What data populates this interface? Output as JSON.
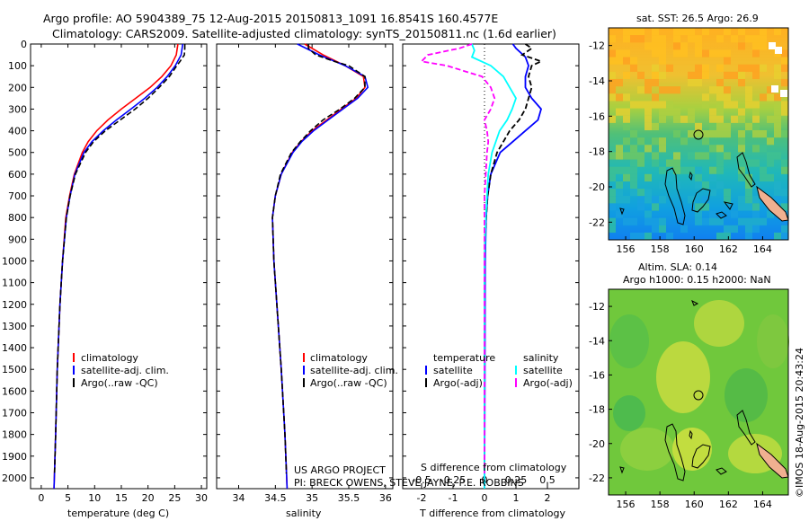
{
  "header": {
    "line1": "Argo profile: AO 5904389_75 12-Aug-2015 20150813_1091 16.8541S 160.4577E",
    "line2": "Climatology: CARS2009. Satellite-adjusted climatology: synTS_20150811.nc (1.6d earlier)"
  },
  "credits": {
    "line1": "US ARGO PROJECT",
    "line2": "PI: BRECK OWENS, STEVE JAYNE, P.E. ROBBINS"
  },
  "timestamp": "©IMOS 18-Aug-2015 20:43:24",
  "map_sst": {
    "title": "sat. SST: 26.5 Argo: 26.9"
  },
  "map_sla": {
    "title1": "Altim. SLA: 0.14",
    "title2": "Argo h1000: 0.15 h2000: NaN"
  },
  "legend_left": {
    "items": [
      "climatology",
      "satellite-adj. clim.",
      "Argo(..raw -QC)"
    ]
  },
  "legend_mid": {
    "items": [
      "climatology",
      "satellite-adj. clim.",
      "Argo(..raw -QC)"
    ]
  },
  "legend_right": {
    "col1_title": "temperature",
    "col1_items": [
      "satellite",
      "Argo(-adj)"
    ],
    "col2_title": "salinity",
    "col2_items": [
      "satellite",
      "Argo(-adj)"
    ]
  },
  "colors": {
    "climatology": "#ff0000",
    "satellite": "#0000ff",
    "argo": "#000000",
    "sal_sat": "#00ffff",
    "sal_argo": "#ff00ff",
    "land": "#f0b090"
  },
  "chart_data": [
    {
      "type": "line",
      "xlabel": "temperature (deg C)",
      "ylabel": "",
      "xlim": [
        -2,
        31
      ],
      "ylim": [
        2050,
        0
      ],
      "xticks": [
        "0",
        "5",
        "10",
        "15",
        "20",
        "25",
        "30"
      ],
      "yticks": [
        "0",
        "100",
        "200",
        "300",
        "400",
        "500",
        "600",
        "700",
        "800",
        "900",
        "1000",
        "1100",
        "1200",
        "1300",
        "1400",
        "1500",
        "1600",
        "1700",
        "1800",
        "1900",
        "2000"
      ],
      "series": [
        {
          "name": "climatology",
          "depth": [
            0,
            50,
            100,
            150,
            200,
            250,
            300,
            350,
            400,
            450,
            500,
            600,
            700,
            800,
            1000,
            1200,
            1500,
            1800,
            2050
          ],
          "values": [
            25.6,
            25.3,
            24.3,
            22.6,
            20.4,
            17.7,
            15.0,
            12.5,
            10.4,
            8.8,
            7.7,
            6.2,
            5.3,
            4.6,
            4.0,
            3.5,
            3.0,
            2.7,
            2.4
          ]
        },
        {
          "name": "satellite-adj. clim.",
          "depth": [
            0,
            50,
            100,
            150,
            200,
            250,
            300,
            350,
            400,
            450,
            500,
            600,
            700,
            800,
            1000,
            1200,
            1500,
            1800,
            2050
          ],
          "values": [
            26.5,
            26.2,
            25.1,
            23.6,
            21.7,
            19.4,
            16.8,
            14.1,
            11.6,
            9.5,
            8.0,
            6.3,
            5.4,
            4.7,
            4.0,
            3.5,
            3.0,
            2.7,
            2.4
          ]
        },
        {
          "name": "Argo(..raw -QC)",
          "depth": [
            2,
            20,
            50,
            80,
            100,
            150,
            200,
            250,
            300,
            350,
            400,
            450,
            500,
            600,
            700,
            800,
            1000,
            1200,
            1500,
            1800,
            1980
          ],
          "values": [
            26.9,
            26.9,
            26.8,
            26.0,
            25.4,
            24.0,
            22.1,
            20.0,
            17.6,
            14.8,
            12.0,
            9.8,
            8.3,
            6.4,
            5.4,
            4.7,
            4.0,
            3.5,
            3.0,
            2.7,
            2.5
          ]
        }
      ]
    },
    {
      "type": "line",
      "xlabel": "salinity",
      "ylabel": "",
      "xlim": [
        33.7,
        36.1
      ],
      "ylim": [
        2050,
        0
      ],
      "xticks": [
        "34",
        "34.5",
        "35",
        "35.5",
        "36"
      ],
      "series": [
        {
          "name": "climatology",
          "depth": [
            0,
            50,
            100,
            150,
            200,
            250,
            300,
            350,
            400,
            450,
            500,
            600,
            700,
            800,
            1000,
            1200,
            1500,
            1800,
            2050
          ],
          "values": [
            34.9,
            35.15,
            35.45,
            35.7,
            35.72,
            35.6,
            35.4,
            35.2,
            35.0,
            34.85,
            34.73,
            34.58,
            34.5,
            34.46,
            34.48,
            34.52,
            34.58,
            34.63,
            34.66
          ]
        },
        {
          "name": "satellite-adj. clim.",
          "depth": [
            0,
            50,
            100,
            150,
            200,
            250,
            300,
            350,
            400,
            450,
            500,
            600,
            700,
            800,
            1000,
            1200,
            1500,
            1800,
            2050
          ],
          "values": [
            34.8,
            35.1,
            35.45,
            35.72,
            35.76,
            35.62,
            35.42,
            35.22,
            35.02,
            34.86,
            34.74,
            34.58,
            34.5,
            34.46,
            34.48,
            34.52,
            34.58,
            34.63,
            34.66
          ]
        },
        {
          "name": "Argo(..raw -QC)",
          "depth": [
            2,
            20,
            50,
            80,
            100,
            150,
            200,
            250,
            300,
            350,
            400,
            450,
            500,
            600,
            700,
            800,
            1000,
            1200,
            1500,
            1800,
            1980
          ],
          "values": [
            34.95,
            34.95,
            35.05,
            35.3,
            35.5,
            35.72,
            35.72,
            35.58,
            35.38,
            35.15,
            34.98,
            34.84,
            34.72,
            34.57,
            34.5,
            34.46,
            34.48,
            34.52,
            34.58,
            34.63,
            34.65
          ]
        }
      ]
    },
    {
      "type": "line",
      "xlabel": "T difference from climatology",
      "xlabel2": "S difference from climatology",
      "xlim": [
        -2.6,
        3.0
      ],
      "ylim": [
        2050,
        0
      ],
      "xticks": [
        "-2",
        "-1",
        "0",
        "1",
        "2"
      ],
      "xticks2": [
        "-0.5",
        "-0.25",
        "0",
        "0.25",
        "0.5"
      ],
      "series": [
        {
          "name": "temperature satellite",
          "depth": [
            0,
            20,
            60,
            100,
            150,
            200,
            250,
            300,
            350,
            400,
            450,
            500,
            600,
            700,
            800,
            1000,
            1500,
            2050
          ],
          "values": [
            0.9,
            1.0,
            1.3,
            1.4,
            1.3,
            1.3,
            1.5,
            1.8,
            1.7,
            1.3,
            0.9,
            0.5,
            0.2,
            0.1,
            0.05,
            0.02,
            0.01,
            0.0
          ]
        },
        {
          "name": "temperature Argo(-adj)",
          "depth": [
            0,
            20,
            50,
            80,
            100,
            150,
            200,
            250,
            300,
            350,
            400,
            450,
            500,
            600,
            700,
            800,
            900,
            1000,
            1500,
            1980
          ],
          "values": [
            1.3,
            1.5,
            1.2,
            1.8,
            1.5,
            1.4,
            1.5,
            1.4,
            1.3,
            1.1,
            0.8,
            0.6,
            0.4,
            0.2,
            0.1,
            0.05,
            0.02,
            0.0,
            0.0,
            0.0
          ]
        },
        {
          "name": "salinity satellite",
          "depth": [
            0,
            30,
            60,
            100,
            150,
            200,
            250,
            300,
            350,
            400,
            500,
            600,
            700,
            800,
            1000,
            1500,
            2050
          ],
          "values": [
            -0.1,
            -0.08,
            -0.1,
            0.05,
            0.15,
            0.2,
            0.25,
            0.22,
            0.18,
            0.12,
            0.06,
            0.03,
            0.02,
            0.01,
            0.0,
            0.0,
            0.0
          ]
        },
        {
          "name": "salinity Argo(-adj)",
          "depth": [
            0,
            20,
            50,
            80,
            100,
            150,
            200,
            250,
            300,
            350,
            400,
            450,
            500,
            600,
            700,
            800,
            900,
            1000,
            1980
          ],
          "values": [
            -0.1,
            -0.2,
            -0.45,
            -0.5,
            -0.3,
            -0.02,
            0.05,
            0.08,
            0.05,
            0.0,
            0.02,
            0.03,
            0.02,
            0.01,
            0.0,
            0.0,
            0.0,
            0.0,
            0.0
          ]
        }
      ]
    },
    {
      "type": "heatmap",
      "title": "sat. SST: 26.5 Argo: 26.9",
      "xticks": [
        "156",
        "158",
        "160",
        "162",
        "164"
      ],
      "yticks": [
        "-12",
        "-14",
        "-16",
        "-18",
        "-20",
        "-22"
      ],
      "xlim": [
        155,
        165.5
      ],
      "ylim": [
        -23,
        -11
      ],
      "marker": {
        "lon": 160.46,
        "lat": -16.85
      }
    },
    {
      "type": "heatmap",
      "title": "Altim. SLA: 0.14",
      "xticks": [
        "156",
        "158",
        "160",
        "162",
        "164"
      ],
      "yticks": [
        "-12",
        "-14",
        "-16",
        "-18",
        "-20",
        "-22"
      ],
      "xlim": [
        155,
        165.5
      ],
      "ylim": [
        -23,
        -11
      ],
      "marker": {
        "lon": 160.46,
        "lat": -16.85
      }
    }
  ]
}
